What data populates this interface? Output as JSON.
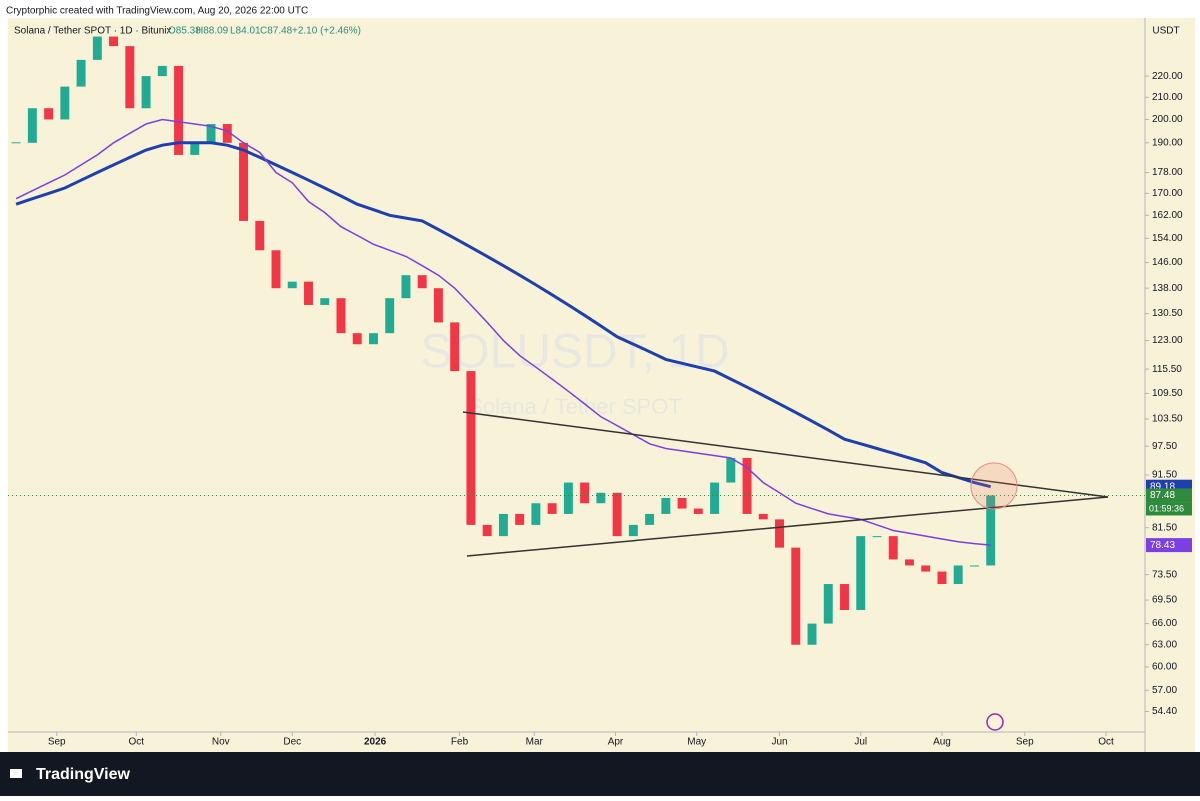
{
  "chart_data": {
    "type": "candlestick",
    "header": "Cryptorphic created with TradingView.com, Aug 20, 2026 22:00 UTC",
    "symbol": "Solana / Tether SPOT · 1D · Bitunix",
    "ohlc": [
      "O85.38",
      "H88.09",
      "L84.01",
      "C87.48",
      "+2.10 (+2.46%)"
    ],
    "watermark": "SOLUSDT, 1D",
    "watermark_sub": "Solana / Tether SPOT",
    "currency": "USDT",
    "countdown": "01:59:36",
    "brand": "TradingView",
    "log_scale": true,
    "up_color": "#22ab94",
    "down_color": "#f23645",
    "categories": [
      null,
      null,
      null,
      null,
      null,
      null,
      null,
      null,
      null,
      null,
      null,
      null,
      null,
      null,
      null,
      null,
      null,
      null,
      null,
      null,
      null,
      null,
      null,
      null,
      null,
      null,
      null,
      null,
      null,
      null,
      null,
      null,
      null,
      null,
      null,
      null,
      null,
      null,
      null,
      null,
      null,
      null,
      null,
      null,
      null,
      null,
      null,
      null,
      null,
      null,
      null,
      null,
      null,
      null,
      null,
      null,
      null,
      null,
      null,
      null,
      null
    ],
    "values": [
      190,
      205,
      200,
      215,
      228,
      240,
      235,
      205,
      220,
      225,
      185,
      190,
      198,
      190,
      160,
      150,
      138,
      140,
      133,
      135,
      125,
      122,
      125,
      135,
      142,
      138,
      128,
      115,
      82,
      80,
      84,
      82,
      86,
      84,
      90,
      86,
      88,
      80,
      82,
      84,
      87,
      85,
      84,
      90,
      95,
      84,
      83,
      78,
      63,
      66,
      72,
      68,
      80,
      80,
      76,
      75,
      74,
      72,
      75,
      75,
      87.48
    ],
    "series": [
      {
        "color": "#1e3fae",
        "values": [
          166,
          168,
          170,
          172,
          175,
          178,
          181,
          184,
          187,
          189,
          190,
          190,
          190,
          189,
          187,
          184,
          181,
          178,
          175,
          172,
          169,
          166,
          164,
          162,
          161,
          160,
          157,
          154,
          151,
          148,
          145,
          142,
          139,
          136,
          133,
          130,
          127,
          124,
          122,
          120,
          118,
          117,
          116,
          115,
          113,
          111,
          109,
          107,
          105,
          103,
          101,
          99,
          98,
          97,
          96,
          95,
          94,
          92,
          91,
          90,
          89.18
        ]
      },
      {
        "color": "#7b3fe4",
        "values": [
          168,
          171,
          174,
          177,
          181,
          185,
          190,
          194,
          198,
          200,
          199,
          198,
          197,
          195,
          190,
          186,
          178,
          174,
          167,
          163,
          158,
          155,
          152,
          150,
          148,
          145,
          142,
          138,
          133,
          128,
          123,
          119,
          116,
          113,
          110,
          107,
          104,
          102,
          100,
          98,
          97,
          96.5,
          96,
          95.5,
          95,
          93,
          90,
          88,
          86,
          85,
          84,
          83.5,
          83,
          82,
          81,
          80.5,
          80,
          79.5,
          79,
          78.7,
          78.43
        ]
      }
    ],
    "xlim": [
      -0.5,
      69.5
    ],
    "xticks": [
      {
        "value": 2.5,
        "label": "Sep"
      },
      {
        "value": 7.4,
        "label": "Oct"
      },
      {
        "value": 12.6,
        "label": "Nov"
      },
      {
        "value": 17,
        "label": "Dec"
      },
      {
        "value": 22.1,
        "label": "2026"
      },
      {
        "value": 27.3,
        "label": "Feb"
      },
      {
        "value": 31.9,
        "label": "Mar"
      },
      {
        "value": 36.9,
        "label": "Apr"
      },
      {
        "value": 41.9,
        "label": "May"
      },
      {
        "value": 47,
        "label": "Jun"
      },
      {
        "value": 52,
        "label": "Jul"
      },
      {
        "value": 57,
        "label": "Aug"
      },
      {
        "value": 62.1,
        "label": "Sep"
      },
      {
        "value": 67.1,
        "label": "Oct"
      }
    ],
    "ylim": [
      52,
      250
    ],
    "yticks": [
      {
        "value": 220,
        "label": "220.00"
      },
      {
        "value": 210,
        "label": "210.00"
      },
      {
        "value": 200,
        "label": "200.00"
      },
      {
        "value": 190,
        "label": "190.00"
      },
      {
        "value": 178,
        "label": "178.00"
      },
      {
        "value": 170,
        "label": "170.00"
      },
      {
        "value": 162,
        "label": "162.00"
      },
      {
        "value": 154,
        "label": "154.00"
      },
      {
        "value": 146,
        "label": "146.00"
      },
      {
        "value": 138,
        "label": "138.00"
      },
      {
        "value": 130.5,
        "label": "130.50"
      },
      {
        "value": 123,
        "label": "123.00"
      },
      {
        "value": 115.5,
        "label": "115.50"
      },
      {
        "value": 109.5,
        "label": "109.50"
      },
      {
        "value": 103.5,
        "label": "103.50"
      },
      {
        "value": 97.5,
        "label": "97.50"
      },
      {
        "value": 91.5,
        "label": "91.50"
      },
      {
        "value": 81.5,
        "label": "81.50"
      },
      {
        "value": 73.5,
        "label": "73.50"
      },
      {
        "value": 69.5,
        "label": "69.50"
      },
      {
        "value": 66,
        "label": "66.00"
      },
      {
        "value": 63,
        "label": "63.00"
      },
      {
        "value": 60,
        "label": "60.00"
      },
      {
        "value": 57,
        "label": "57.00"
      },
      {
        "value": 54.4,
        "label": "54.40"
      }
    ]
  }
}
